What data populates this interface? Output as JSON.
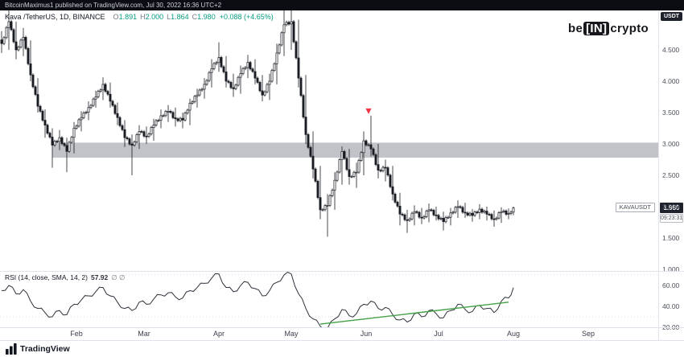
{
  "header": {
    "publish_line": "BitcoinMaximus1 published on TradingView.com, Jul 30, 2022 16:36 UTC+2"
  },
  "watermark": {
    "pre": "be",
    "mid": "[IN]",
    "post": "crypto"
  },
  "symbol_row": {
    "title": "Kava /TetherUS, 1D, BINANCE",
    "o_label": "O",
    "o": "1.891",
    "h_label": "H",
    "h": "2.000",
    "l_label": "L",
    "l": "1.864",
    "c_label": "C",
    "c": "1.980",
    "change": "+0.088 (+4.65%)"
  },
  "price_axis": {
    "currency": "USDT",
    "ticks": [
      "4.500",
      "4.000",
      "3.500",
      "3.000",
      "2.500",
      "2.000",
      "1.500",
      "1.000"
    ],
    "last_price": "1.980",
    "countdown": "09:23:31",
    "symbol_label": "KAVAUSDT"
  },
  "rsi_row": {
    "title": "RSI (14, close, SMA, 14, 2)",
    "value": "57.92",
    "extra": "∅ ∅"
  },
  "rsi_axis": {
    "ticks": [
      "60.00",
      "40.00",
      "20.00"
    ]
  },
  "footer": {
    "brand": "TradingView"
  },
  "colors": {
    "up_candle": "#ffffff",
    "down_candle": "#1a1d24",
    "zone_gray": "#787b86",
    "marker_red": "#f23645",
    "trend_green": "#43a047",
    "rsi_line": "#2e323b",
    "label_dark_bg": "#1e222d",
    "border": "#e0e3eb"
  },
  "chart_data": {
    "type": "candlestick",
    "symbol": "KAVAUSDT",
    "exchange": "BINANCE",
    "interval": "1D",
    "quote_currency": "USDT",
    "title": "Kava /TetherUS, 1D, BINANCE",
    "visible_price_range": [
      0.96,
      5.15
    ],
    "price_tick_step": 0.5,
    "last": {
      "open": 1.891,
      "high": 2.0,
      "low": 1.864,
      "close": 1.98,
      "change": 0.088,
      "change_pct": 4.65
    },
    "x_axis": {
      "unit": "day-index from chart start (Jan)",
      "month_ticks": [
        {
          "label": "Feb",
          "day": 31
        },
        {
          "label": "Mar",
          "day": 59
        },
        {
          "label": "Apr",
          "day": 90
        },
        {
          "label": "May",
          "day": 120
        },
        {
          "label": "Jun",
          "day": 151
        },
        {
          "label": "Jul",
          "day": 181
        },
        {
          "label": "Aug",
          "day": 212
        },
        {
          "label": "Sep",
          "day": 243
        }
      ]
    },
    "ohlc_samples_note": "close/high/low read off chart approx every 3rd day; daily candles interpolated between samples for display",
    "ohlc_samples": [
      [
        0,
        4.6,
        4.8,
        4.45
      ],
      [
        3,
        4.95,
        5.15,
        4.5
      ],
      [
        6,
        4.5,
        4.95,
        4.35
      ],
      [
        9,
        4.7,
        4.85,
        4.4
      ],
      [
        12,
        4.1,
        4.65,
        4.0
      ],
      [
        15,
        3.6,
        4.05,
        3.5
      ],
      [
        18,
        3.3,
        3.55,
        3.1
      ],
      [
        21,
        2.98,
        3.25,
        2.62
      ],
      [
        24,
        3.1,
        3.22,
        2.9
      ],
      [
        27,
        2.88,
        3.1,
        2.55
      ],
      [
        30,
        3.25,
        3.35,
        2.85
      ],
      [
        33,
        3.42,
        3.52,
        3.2
      ],
      [
        36,
        3.58,
        3.68,
        3.38
      ],
      [
        39,
        3.75,
        3.85,
        3.58
      ],
      [
        42,
        3.95,
        4.06,
        3.7
      ],
      [
        45,
        3.68,
        3.98,
        3.58
      ],
      [
        48,
        3.42,
        3.66,
        3.3
      ],
      [
        51,
        3.1,
        3.38,
        2.95
      ],
      [
        54,
        2.98,
        3.15,
        2.5
      ],
      [
        57,
        3.2,
        3.3,
        2.92
      ],
      [
        60,
        3.12,
        3.28,
        3.0
      ],
      [
        63,
        3.3,
        3.4,
        3.05
      ],
      [
        66,
        3.45,
        3.55,
        3.25
      ],
      [
        69,
        3.52,
        3.62,
        3.35
      ],
      [
        72,
        3.4,
        3.58,
        3.28
      ],
      [
        75,
        3.38,
        3.5,
        3.25
      ],
      [
        78,
        3.65,
        3.72,
        3.3
      ],
      [
        81,
        3.78,
        3.88,
        3.58
      ],
      [
        84,
        3.95,
        4.05,
        3.72
      ],
      [
        87,
        4.2,
        4.35,
        3.9
      ],
      [
        90,
        4.38,
        4.62,
        4.15
      ],
      [
        93,
        4.0,
        4.4,
        3.9
      ],
      [
        96,
        3.88,
        4.12,
        3.75
      ],
      [
        99,
        4.12,
        4.25,
        3.8
      ],
      [
        102,
        4.3,
        4.42,
        4.05
      ],
      [
        105,
        4.05,
        4.35,
        3.95
      ],
      [
        108,
        3.78,
        4.1,
        3.68
      ],
      [
        111,
        4.0,
        4.12,
        3.7
      ],
      [
        114,
        4.45,
        4.6,
        3.95
      ],
      [
        117,
        4.9,
        5.25,
        4.4
      ],
      [
        120,
        4.95,
        5.3,
        4.5
      ],
      [
        123,
        4.05,
        4.98,
        3.9
      ],
      [
        126,
        3.15,
        4.1,
        3.0
      ],
      [
        129,
        2.6,
        3.2,
        2.45
      ],
      [
        132,
        1.95,
        2.65,
        1.8
      ],
      [
        135,
        2.02,
        2.2,
        1.52
      ],
      [
        138,
        2.42,
        2.55,
        1.95
      ],
      [
        141,
        2.88,
        2.96,
        2.35
      ],
      [
        144,
        2.48,
        2.92,
        2.35
      ],
      [
        147,
        2.55,
        2.7,
        2.3
      ],
      [
        150,
        3.05,
        3.2,
        2.5
      ],
      [
        153,
        2.92,
        3.45,
        2.8
      ],
      [
        156,
        2.58,
        3.0,
        2.45
      ],
      [
        159,
        2.62,
        2.75,
        2.4
      ],
      [
        162,
        2.2,
        2.65,
        2.1
      ],
      [
        165,
        1.88,
        2.22,
        1.7
      ],
      [
        168,
        1.78,
        1.95,
        1.58
      ],
      [
        171,
        1.92,
        2.02,
        1.7
      ],
      [
        174,
        1.82,
        1.98,
        1.72
      ],
      [
        177,
        1.95,
        2.05,
        1.75
      ],
      [
        180,
        1.86,
        2.0,
        1.78
      ],
      [
        183,
        1.76,
        1.92,
        1.62
      ],
      [
        186,
        1.9,
        1.98,
        1.7
      ],
      [
        189,
        2.0,
        2.1,
        1.82
      ],
      [
        192,
        1.9,
        2.06,
        1.82
      ],
      [
        195,
        1.86,
        1.96,
        1.76
      ],
      [
        198,
        1.96,
        2.04,
        1.8
      ],
      [
        201,
        1.88,
        2.0,
        1.78
      ],
      [
        204,
        1.8,
        1.94,
        1.68
      ],
      [
        207,
        1.92,
        1.99,
        1.74
      ],
      [
        210,
        1.89,
        1.97,
        1.8
      ],
      [
        212,
        1.98,
        2.0,
        1.864
      ]
    ],
    "resistance_zone": {
      "price_top": 3.02,
      "price_bottom": 2.78,
      "from_day": 21,
      "to_day": "right-edge"
    },
    "marker": {
      "day": 152,
      "price": 3.45,
      "shape": "down-triangle",
      "color": "#f23645"
    },
    "rsi": {
      "title": "RSI (14, close, SMA, 14, 2)",
      "last_value": 57.92,
      "levels": [
        70,
        30
      ],
      "visible_range": [
        15,
        75
      ],
      "samples": [
        [
          0,
          55
        ],
        [
          3,
          60
        ],
        [
          6,
          52
        ],
        [
          9,
          56
        ],
        [
          12,
          45
        ],
        [
          15,
          38
        ],
        [
          18,
          34
        ],
        [
          21,
          30
        ],
        [
          24,
          36
        ],
        [
          27,
          32
        ],
        [
          30,
          42
        ],
        [
          33,
          46
        ],
        [
          36,
          50
        ],
        [
          39,
          54
        ],
        [
          42,
          58
        ],
        [
          45,
          50
        ],
        [
          48,
          44
        ],
        [
          51,
          38
        ],
        [
          54,
          36
        ],
        [
          57,
          44
        ],
        [
          60,
          42
        ],
        [
          63,
          47
        ],
        [
          66,
          51
        ],
        [
          69,
          53
        ],
        [
          72,
          49
        ],
        [
          75,
          48
        ],
        [
          78,
          55
        ],
        [
          81,
          58
        ],
        [
          84,
          62
        ],
        [
          87,
          67
        ],
        [
          90,
          71
        ],
        [
          93,
          58
        ],
        [
          96,
          54
        ],
        [
          99,
          60
        ],
        [
          102,
          63
        ],
        [
          105,
          57
        ],
        [
          108,
          50
        ],
        [
          111,
          55
        ],
        [
          114,
          63
        ],
        [
          117,
          70
        ],
        [
          120,
          71
        ],
        [
          123,
          52
        ],
        [
          126,
          38
        ],
        [
          129,
          28
        ],
        [
          132,
          21
        ],
        [
          135,
          19
        ],
        [
          138,
          28
        ],
        [
          141,
          37
        ],
        [
          144,
          31
        ],
        [
          147,
          33
        ],
        [
          150,
          42
        ],
        [
          153,
          45
        ],
        [
          156,
          38
        ],
        [
          159,
          39
        ],
        [
          162,
          32
        ],
        [
          165,
          27
        ],
        [
          168,
          25
        ],
        [
          171,
          33
        ],
        [
          174,
          30
        ],
        [
          177,
          36
        ],
        [
          180,
          33
        ],
        [
          183,
          29
        ],
        [
          186,
          36
        ],
        [
          189,
          42
        ],
        [
          192,
          37
        ],
        [
          195,
          35
        ],
        [
          198,
          41
        ],
        [
          201,
          38
        ],
        [
          204,
          34
        ],
        [
          207,
          45
        ],
        [
          210,
          48
        ],
        [
          212,
          57.92
        ]
      ],
      "trendline": {
        "from": [
          132,
          23
        ],
        "to": [
          210,
          44
        ],
        "color": "#43a047"
      }
    }
  }
}
